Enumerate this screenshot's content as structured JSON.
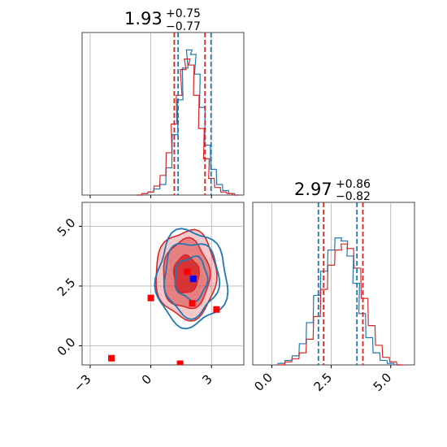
{
  "chart_data": [
    {
      "type": "histogram",
      "panel": "top-left",
      "title": {
        "value": "1.93",
        "plus": "+0.75",
        "minus": "−0.77"
      },
      "xlim": [
        -3.4,
        4.6
      ],
      "grid": true,
      "series": [
        {
          "color": "#1f77b4",
          "bins": [
            [
              -0.6,
              0.0
            ],
            [
              -0.3,
              0.01
            ],
            [
              0.0,
              0.02
            ],
            [
              0.3,
              0.04
            ],
            [
              0.6,
              0.07
            ],
            [
              0.9,
              0.18
            ],
            [
              1.2,
              0.4
            ],
            [
              1.45,
              0.63
            ],
            [
              1.7,
              0.84
            ],
            [
              1.9,
              0.96
            ],
            [
              2.1,
              0.93
            ],
            [
              2.3,
              0.8
            ],
            [
              2.55,
              0.58
            ],
            [
              2.8,
              0.33
            ],
            [
              3.1,
              0.17
            ],
            [
              3.4,
              0.07
            ],
            [
              3.7,
              0.03
            ],
            [
              4.0,
              0.01
            ],
            [
              4.3,
              0.0
            ]
          ]
        },
        {
          "color": "#d62728",
          "bins": [
            [
              -0.6,
              0.0
            ],
            [
              -0.3,
              0.01
            ],
            [
              0.0,
              0.02
            ],
            [
              0.3,
              0.06
            ],
            [
              0.6,
              0.13
            ],
            [
              0.9,
              0.28
            ],
            [
              1.15,
              0.47
            ],
            [
              1.4,
              0.66
            ],
            [
              1.6,
              0.83
            ],
            [
              1.8,
              0.9
            ],
            [
              2.0,
              0.86
            ],
            [
              2.25,
              0.66
            ],
            [
              2.5,
              0.44
            ],
            [
              2.75,
              0.24
            ],
            [
              3.0,
              0.11
            ],
            [
              3.3,
              0.05
            ],
            [
              3.6,
              0.02
            ],
            [
              3.9,
              0.01
            ],
            [
              4.2,
              0.0
            ]
          ]
        }
      ],
      "quantile_lines": [
        {
          "color": "#d62728",
          "x": [
            1.16,
            2.68
          ]
        },
        {
          "color": "#1f77b4",
          "x": [
            1.35,
            2.98
          ]
        }
      ]
    },
    {
      "type": "histogram",
      "panel": "bottom-right",
      "title": {
        "value": "2.97",
        "plus": "+0.86",
        "minus": "−0.82"
      },
      "xlim": [
        -0.8,
        6.0
      ],
      "xticks": [
        "0.0",
        "2.5",
        "5.0"
      ],
      "xtick_values": [
        0.0,
        2.5,
        5.0
      ],
      "grid": true,
      "series": [
        {
          "color": "#1f77b4",
          "bins": [
            [
              0.4,
              0.01
            ],
            [
              0.7,
              0.03
            ],
            [
              1.0,
              0.06
            ],
            [
              1.3,
              0.14
            ],
            [
              1.6,
              0.28
            ],
            [
              1.9,
              0.46
            ],
            [
              2.2,
              0.62
            ],
            [
              2.5,
              0.76
            ],
            [
              2.8,
              0.84
            ],
            [
              3.05,
              0.82
            ],
            [
              3.3,
              0.72
            ],
            [
              3.55,
              0.54
            ],
            [
              3.8,
              0.34
            ],
            [
              4.1,
              0.18
            ],
            [
              4.4,
              0.08
            ],
            [
              4.7,
              0.03
            ],
            [
              5.0,
              0.01
            ],
            [
              5.3,
              0.0
            ]
          ]
        },
        {
          "color": "#d62728",
          "bins": [
            [
              0.4,
              0.0
            ],
            [
              0.7,
              0.02
            ],
            [
              1.0,
              0.04
            ],
            [
              1.3,
              0.08
            ],
            [
              1.6,
              0.17
            ],
            [
              1.9,
              0.32
            ],
            [
              2.2,
              0.5
            ],
            [
              2.5,
              0.66
            ],
            [
              2.8,
              0.76
            ],
            [
              3.05,
              0.8
            ],
            [
              3.3,
              0.77
            ],
            [
              3.6,
              0.64
            ],
            [
              3.9,
              0.44
            ],
            [
              4.2,
              0.26
            ],
            [
              4.5,
              0.13
            ],
            [
              4.8,
              0.05
            ],
            [
              5.1,
              0.02
            ],
            [
              5.4,
              0.0
            ]
          ]
        }
      ],
      "quantile_lines": [
        {
          "color": "#1f77b4",
          "x": [
            1.96,
            3.58
          ]
        },
        {
          "color": "#d62728",
          "x": [
            2.18,
            3.83
          ]
        }
      ]
    },
    {
      "type": "contour",
      "panel": "bottom-left",
      "xlim": [
        -3.4,
        4.6
      ],
      "ylim": [
        -0.8,
        6.0
      ],
      "xticks": [
        "−3",
        "0",
        "3"
      ],
      "xtick_values": [
        -3,
        0,
        3
      ],
      "yticks": [
        "0.0",
        "2.5",
        "5.0"
      ],
      "ytick_values": [
        0.0,
        2.5,
        5.0
      ],
      "grid": true,
      "contours": [
        {
          "color": "#d62728",
          "center": [
            1.75,
            2.98
          ],
          "radii": [
            [
              0.62,
              0.78
            ],
            [
              1.15,
              1.45
            ],
            [
              1.5,
              1.85
            ]
          ]
        },
        {
          "color": "#1f77b4",
          "center": [
            2.0,
            2.82
          ],
          "radii": [
            [
              0.8,
              0.9
            ],
            [
              1.35,
              1.55
            ],
            [
              1.75,
              2.0
            ]
          ]
        }
      ],
      "markers": [
        {
          "color": "#ff0000",
          "points": [
            [
              1.8,
              3.1
            ],
            [
              0.0,
              2.0
            ],
            [
              2.05,
              1.78
            ],
            [
              3.25,
              1.52
            ],
            [
              -1.95,
              -0.52
            ],
            [
              1.45,
              -0.75
            ]
          ]
        },
        {
          "color": "#0000ff",
          "points": [
            [
              2.1,
              2.8
            ]
          ]
        }
      ]
    }
  ]
}
